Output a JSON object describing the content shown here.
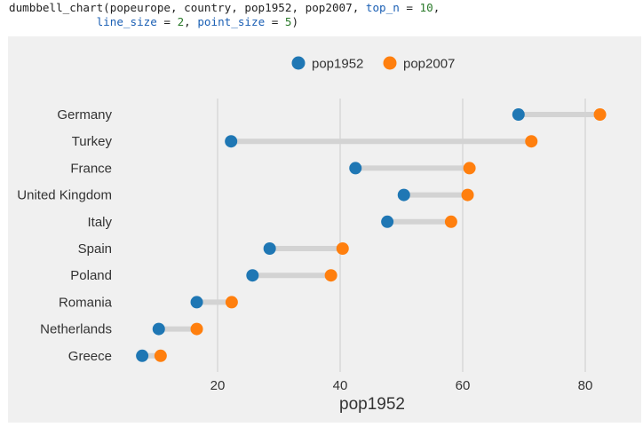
{
  "code": {
    "func": "dumbbell_chart",
    "args_line1": "(popeurope, country, pop1952, pop2007, ",
    "kw1": "top_n",
    "eq1": " = ",
    "val1": "10",
    "comma1": ",",
    "indent": "             ",
    "kw2": "line_size",
    "eq2": " = ",
    "val2": "2",
    "comma2": ", ",
    "kw3": "point_size",
    "eq3": " = ",
    "val3": "5",
    "close": ")"
  },
  "chart_data": {
    "type": "dumbbell",
    "xlabel": "pop1952",
    "ylabel": "",
    "xlim": [
      5,
      83
    ],
    "xticks": [
      20,
      40,
      60,
      80
    ],
    "grid": true,
    "legend_placement": "top-center",
    "categories": [
      "Germany",
      "Turkey",
      "France",
      "United Kingdom",
      "Italy",
      "Spain",
      "Poland",
      "Romania",
      "Netherlands",
      "Greece"
    ],
    "series": [
      {
        "name": "pop1952",
        "color": "#1f77b4",
        "values": [
          69.1,
          22.2,
          42.5,
          50.4,
          47.7,
          28.5,
          25.7,
          16.6,
          10.4,
          7.7
        ]
      },
      {
        "name": "pop2007",
        "color": "#ff7f0e",
        "values": [
          82.4,
          71.2,
          61.1,
          60.8,
          58.1,
          40.4,
          38.5,
          22.3,
          16.6,
          10.7
        ]
      }
    ],
    "connector_color": "#d3d3d3"
  }
}
